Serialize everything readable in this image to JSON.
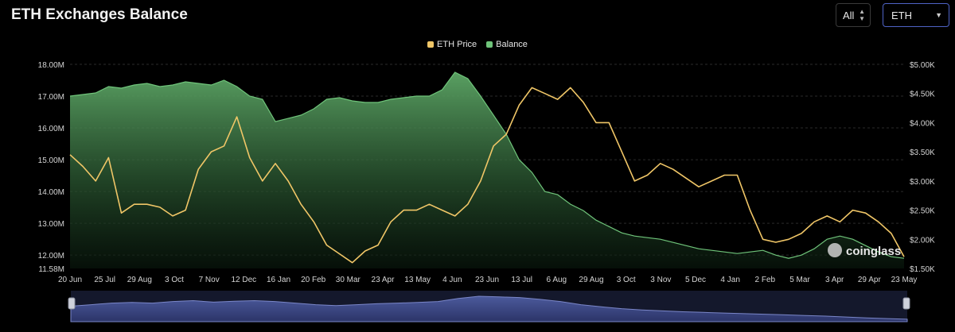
{
  "header": {
    "title": "ETH Exchanges Balance",
    "range_select": "All",
    "coin_select": "ETH"
  },
  "watermark": "coinglass",
  "chart_data": {
    "type": "area",
    "title": "ETH Exchanges Balance",
    "legend_position": "top-center",
    "grid": true,
    "x_labels": [
      "20 Jun",
      "25 Jul",
      "29 Aug",
      "3 Oct",
      "7 Nov",
      "12 Dec",
      "16 Jan",
      "20 Feb",
      "30 Mar",
      "23 Apr",
      "13 May",
      "4 Jun",
      "23 Jun",
      "13 Jul",
      "6 Aug",
      "29 Aug",
      "3 Oct",
      "3 Nov",
      "5 Dec",
      "4 Jan",
      "2 Feb",
      "5 Mar",
      "3 Apr",
      "29 Apr",
      "23 May"
    ],
    "left_axis": {
      "ticks": [
        "18.00M",
        "17.00M",
        "16.00M",
        "15.00M",
        "14.00M",
        "13.00M",
        "12.00M",
        "11.58M"
      ],
      "range": [
        11.58,
        18.0
      ],
      "unit": "M"
    },
    "right_axis": {
      "ticks": [
        "$5.00K",
        "$4.50K",
        "$4.00K",
        "$3.50K",
        "$3.00K",
        "$2.50K",
        "$2.00K",
        "$1.50K"
      ],
      "range": [
        1.5,
        5.0
      ],
      "unit": "$K"
    },
    "series": [
      {
        "name": "ETH Price",
        "axis": "right",
        "color": "#f0c667",
        "values": [
          3.45,
          3.25,
          3.0,
          3.4,
          2.45,
          2.6,
          2.6,
          2.55,
          2.4,
          2.5,
          3.2,
          3.5,
          3.6,
          4.1,
          3.4,
          3.0,
          3.3,
          3.0,
          2.6,
          2.3,
          1.9,
          1.75,
          1.6,
          1.8,
          1.9,
          2.3,
          2.5,
          2.5,
          2.6,
          2.5,
          2.4,
          2.6,
          3.0,
          3.6,
          3.8,
          4.3,
          4.6,
          4.5,
          4.4,
          4.6,
          4.35,
          4.0,
          4.0,
          3.5,
          3.0,
          3.1,
          3.3,
          3.2,
          3.05,
          2.9,
          3.0,
          3.1,
          3.1,
          2.5,
          2.0,
          1.95,
          2.0,
          2.1,
          2.3,
          2.4,
          2.3,
          2.5,
          2.45,
          2.3,
          2.1,
          1.7
        ]
      },
      {
        "name": "Balance",
        "axis": "left",
        "color": "#6fc47a",
        "values": [
          17.0,
          17.05,
          17.1,
          17.3,
          17.25,
          17.35,
          17.4,
          17.3,
          17.35,
          17.45,
          17.4,
          17.35,
          17.5,
          17.3,
          17.0,
          16.9,
          16.2,
          16.3,
          16.4,
          16.6,
          16.9,
          16.95,
          16.85,
          16.8,
          16.8,
          16.9,
          16.95,
          17.0,
          17.0,
          17.2,
          17.75,
          17.55,
          17.0,
          16.4,
          15.8,
          15.0,
          14.6,
          14.0,
          13.9,
          13.6,
          13.4,
          13.1,
          12.9,
          12.7,
          12.6,
          12.55,
          12.5,
          12.4,
          12.3,
          12.2,
          12.15,
          12.1,
          12.05,
          12.1,
          12.15,
          12.0,
          11.9,
          12.0,
          12.2,
          12.5,
          12.6,
          12.5,
          12.3,
          12.1,
          11.95,
          11.9
        ]
      }
    ]
  },
  "navigator": {
    "values": [
      0.5,
      0.55,
      0.6,
      0.62,
      0.6,
      0.65,
      0.68,
      0.63,
      0.66,
      0.68,
      0.65,
      0.6,
      0.55,
      0.52,
      0.55,
      0.58,
      0.6,
      0.62,
      0.65,
      0.75,
      0.82,
      0.8,
      0.78,
      0.72,
      0.65,
      0.55,
      0.48,
      0.42,
      0.38,
      0.35,
      0.32,
      0.3,
      0.28,
      0.26,
      0.24,
      0.22,
      0.2,
      0.18,
      0.15,
      0.12,
      0.1,
      0.08
    ]
  }
}
